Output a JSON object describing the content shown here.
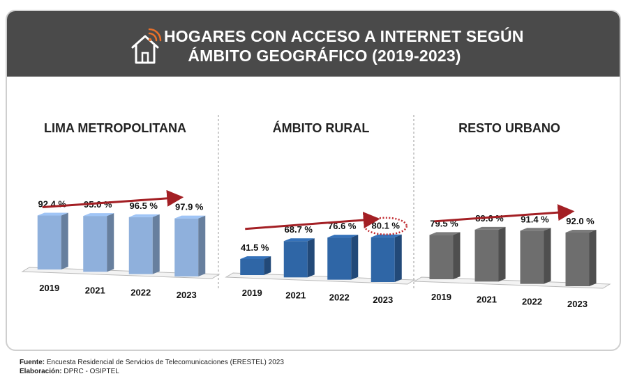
{
  "header": {
    "title_line1": "HOGARES CON ACCESO A INTERNET SEGÚN",
    "title_line2": "ÁMBITO GEOGRÁFICO (2019-2023)",
    "icon": "house-wifi-icon",
    "accent": "#e8702a"
  },
  "footer": {
    "source_label": "Fuente:",
    "source_text": " Encuesta Residencial de Servicios de Telecomunicaciones (ERESTEL) 2023",
    "credit_label": "Elaboración:",
    "credit_text": " DPRC - OSIPTEL"
  },
  "chart_data": [
    {
      "type": "bar",
      "title": "LIMA METROPOLITANA",
      "categories": [
        "2019",
        "2021",
        "2022",
        "2023"
      ],
      "values": [
        92.4,
        95.0,
        96.5,
        97.9
      ],
      "value_labels": [
        "92.4 %",
        "95.0 %",
        "96.5 %",
        "97.9 %"
      ],
      "color": "#8fb0dc",
      "trend_arrow": true
    },
    {
      "type": "bar",
      "title": "ÁMBITO RURAL",
      "categories": [
        "2019",
        "2021",
        "2022",
        "2023"
      ],
      "values": [
        41.5,
        68.7,
        76.6,
        80.1
      ],
      "value_labels": [
        "41.5 %",
        "68.7 %",
        "76.6 %",
        "80.1 %"
      ],
      "color": "#2f66a6",
      "highlight_last": true,
      "trend_arrow": true
    },
    {
      "type": "bar",
      "title": "RESTO URBANO",
      "categories": [
        "2019",
        "2021",
        "2022",
        "2023"
      ],
      "values": [
        79.5,
        89.6,
        91.4,
        92.0
      ],
      "value_labels": [
        "79.5 %",
        "89.6 %",
        "91.4 %",
        "92.0 %"
      ],
      "color": "#6e6e6e",
      "trend_arrow": true
    }
  ]
}
